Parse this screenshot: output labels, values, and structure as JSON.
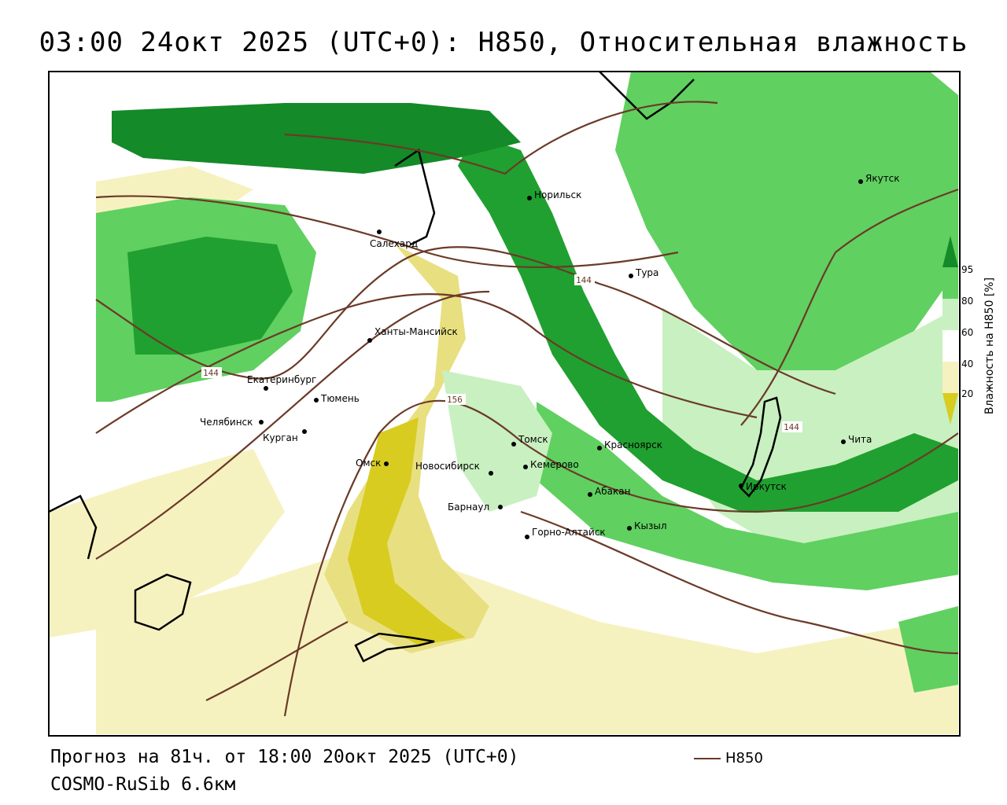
{
  "title": "03:00 24окт 2025 (UTC+0): H850, Относительная влажность",
  "footer": {
    "forecast": "Прогноз на 81ч. от 18:00 20окт 2025 (UTC+0)",
    "model": "COSMO-RuSib 6.6км"
  },
  "legend": {
    "contour_label": "H850",
    "contour_color": "#6b3a28"
  },
  "colorbar": {
    "title": "Влажность на H850 [%]",
    "ticks": [
      "95",
      "80",
      "60",
      "40",
      "20"
    ],
    "colors": {
      "very_dry": "#d8cc20",
      "dry": "#e8e080",
      "moist_low": "#f6f2c0",
      "neutral": "#ffffff",
      "moist": "#c8f0c0",
      "wet": "#60d060",
      "very_wet": "#20a030",
      "saturated": "#148a28"
    }
  },
  "contour_labels": [
    "144",
    "144",
    "156",
    "144"
  ],
  "cities": [
    {
      "name": "Якутск"
    },
    {
      "name": "Норильск"
    },
    {
      "name": "Салехард"
    },
    {
      "name": "Тура"
    },
    {
      "name": "Ханты-Мансийск"
    },
    {
      "name": "Екатеринбург"
    },
    {
      "name": "Тюмень"
    },
    {
      "name": "Челябинск"
    },
    {
      "name": "Курган"
    },
    {
      "name": "Омск"
    },
    {
      "name": "Новосибирск"
    },
    {
      "name": "Томск"
    },
    {
      "name": "Кемерово"
    },
    {
      "name": "Красноярск"
    },
    {
      "name": "Абакан"
    },
    {
      "name": "Барнаул"
    },
    {
      "name": "Горно-Алтайск"
    },
    {
      "name": "Кызыл"
    },
    {
      "name": "Иркутск"
    },
    {
      "name": "Чита"
    }
  ]
}
